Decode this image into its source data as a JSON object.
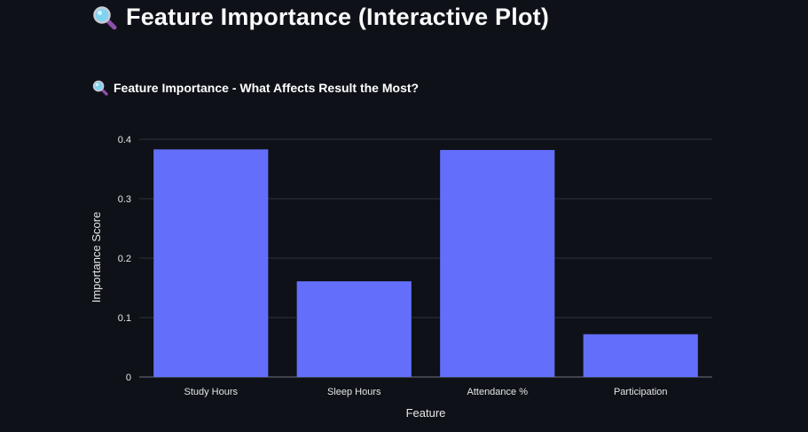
{
  "page": {
    "title": "Feature Importance (Interactive Plot)",
    "title_icon": "magnifier-icon"
  },
  "chart_data": {
    "type": "bar",
    "title": "Feature Importance - What Affects Result the Most?",
    "title_icon": "magnifier-icon",
    "categories": [
      "Study Hours",
      "Sleep Hours",
      "Attendance %",
      "Participation"
    ],
    "values": [
      0.383,
      0.161,
      0.382,
      0.072
    ],
    "xlabel": "Feature",
    "ylabel": "Importance Score",
    "ylim": [
      0,
      0.4
    ],
    "yticks": [
      0,
      0.1,
      0.2,
      0.3,
      0.4
    ],
    "ytick_labels": [
      "0",
      "0.1",
      "0.2",
      "0.3",
      "0.4"
    ],
    "bar_color": "#636efa",
    "grid": true
  }
}
